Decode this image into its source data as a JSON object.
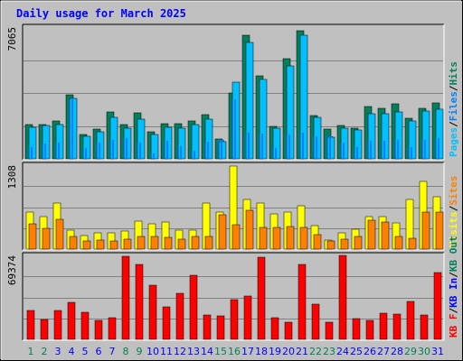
{
  "title": "Daily usage for March 2025",
  "colors": {
    "background": "#C0C0C0",
    "title": "#0000FF",
    "hits": "#00805C",
    "files": "#0080FF",
    "pages": "#00C0FF",
    "visits": "#FFFF00",
    "sites": "#FF8000",
    "kb_f": "#FF0000",
    "kb_in": "#0000FF",
    "kb_out": "#00805C",
    "weekend_day": "#00805C",
    "weekday_day": "#0000FF"
  },
  "chart_data": [
    {
      "type": "bar",
      "ymax_label": "7065",
      "ylim": [
        0,
        7065
      ],
      "legend": [
        "Pages",
        "/",
        "Files",
        "/",
        "Hits"
      ],
      "categories": [
        "1",
        "2",
        "3",
        "4",
        "5",
        "6",
        "7",
        "8",
        "9",
        "10",
        "11",
        "12",
        "13",
        "14",
        "15",
        "16",
        "17",
        "18",
        "19",
        "20",
        "21",
        "22",
        "23",
        "24",
        "25",
        "26",
        "27",
        "28",
        "29",
        "30",
        "31"
      ],
      "series": [
        {
          "name": "Hits",
          "values": [
            1850,
            1850,
            2050,
            3450,
            1300,
            1600,
            2500,
            1850,
            2450,
            1450,
            1900,
            1900,
            2050,
            2350,
            1050,
            3550,
            6650,
            4450,
            1750,
            5350,
            6850,
            2300,
            1600,
            1800,
            1650,
            2800,
            2700,
            2950,
            2200,
            2700,
            3000
          ]
        },
        {
          "name": "Files",
          "values": [
            650,
            800,
            850,
            3200,
            600,
            850,
            1000,
            1100,
            850,
            300,
            950,
            700,
            450,
            900,
            1000,
            3200,
            1400,
            1350,
            600,
            1300,
            1400,
            1200,
            1200,
            850,
            650,
            950,
            950,
            1000,
            650,
            1000,
            1100
          ]
        },
        {
          "name": "Pages",
          "values": [
            1700,
            1800,
            1850,
            3250,
            1200,
            1450,
            2250,
            1650,
            2150,
            1300,
            1700,
            1650,
            1850,
            2150,
            900,
            4100,
            6250,
            4250,
            1650,
            5000,
            6650,
            2250,
            1150,
            1650,
            1550,
            2400,
            2400,
            2500,
            2050,
            2550,
            2650
          ]
        }
      ]
    },
    {
      "type": "bar",
      "ymax_label": "1308",
      "ylim": [
        0,
        1308
      ],
      "legend": [
        "Visits",
        "/",
        "Sites"
      ],
      "categories": [
        "1",
        "2",
        "3",
        "4",
        "5",
        "6",
        "7",
        "8",
        "9",
        "10",
        "11",
        "12",
        "13",
        "14",
        "15",
        "16",
        "17",
        "18",
        "19",
        "20",
        "21",
        "22",
        "23",
        "24",
        "25",
        "26",
        "27",
        "28",
        "29",
        "30",
        "31"
      ],
      "series": [
        {
          "name": "Visits",
          "values": [
            580,
            500,
            720,
            300,
            210,
            260,
            250,
            280,
            430,
            390,
            420,
            300,
            290,
            720,
            580,
            1300,
            780,
            720,
            550,
            570,
            680,
            370,
            140,
            250,
            310,
            510,
            500,
            410,
            780,
            1050,
            820
          ]
        },
        {
          "name": "Sites",
          "values": [
            400,
            330,
            460,
            200,
            120,
            140,
            130,
            160,
            200,
            200,
            180,
            160,
            190,
            200,
            540,
            380,
            610,
            340,
            340,
            350,
            340,
            230,
            130,
            160,
            200,
            450,
            420,
            190,
            170,
            570,
            580
          ]
        }
      ]
    },
    {
      "type": "bar",
      "ymax_label": "69374",
      "ylim": [
        0,
        69374
      ],
      "legend": [
        "KB F",
        "/",
        "KB In",
        "/",
        "KB Out"
      ],
      "categories": [
        "1",
        "2",
        "3",
        "4",
        "5",
        "6",
        "7",
        "8",
        "9",
        "10",
        "11",
        "12",
        "13",
        "14",
        "15",
        "16",
        "17",
        "18",
        "19",
        "20",
        "21",
        "22",
        "23",
        "24",
        "25",
        "26",
        "27",
        "28",
        "29",
        "30",
        "31"
      ],
      "series": [
        {
          "name": "KB F",
          "values": [
            24000,
            16500,
            24000,
            30500,
            22500,
            16000,
            18000,
            69000,
            62000,
            45000,
            27000,
            38000,
            53000,
            20000,
            19500,
            33000,
            35500,
            68000,
            18000,
            14000,
            62000,
            29000,
            14500,
            70000,
            17500,
            15500,
            21500,
            21000,
            31500,
            20000,
            55500
          ]
        }
      ]
    }
  ],
  "day_labels": [
    "1",
    "2",
    "3",
    "4",
    "5",
    "6",
    "7",
    "8",
    "9",
    "10",
    "11",
    "12",
    "13",
    "14",
    "15",
    "16",
    "17",
    "18",
    "19",
    "20",
    "21",
    "22",
    "23",
    "24",
    "25",
    "26",
    "27",
    "28",
    "29",
    "30",
    "31"
  ],
  "weekend_days": [
    1,
    2,
    8,
    9,
    15,
    16,
    22,
    23,
    29,
    30
  ]
}
